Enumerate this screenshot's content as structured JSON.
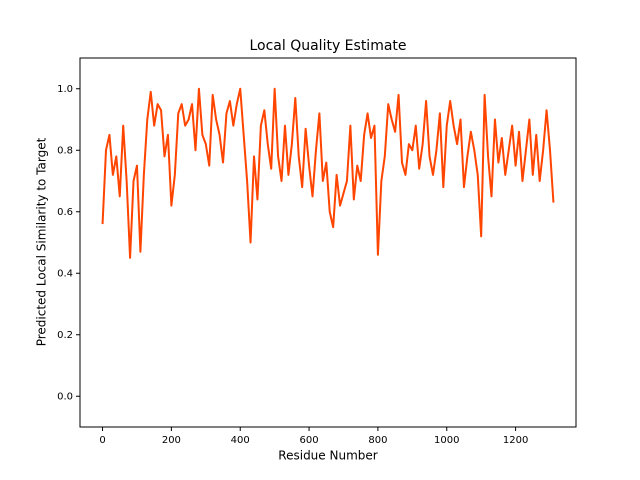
{
  "chart_data": {
    "type": "line",
    "title": "Local Quality Estimate",
    "x_label": "Residue Number",
    "y_label": "Predicted Local Similarity to Target",
    "xlim": [
      -65.5,
      1375.5
    ],
    "ylim": [
      -0.1,
      1.1
    ],
    "xticks": [
      0,
      200,
      400,
      600,
      800,
      1000,
      1200
    ],
    "yticks": [
      {
        "value": 0,
        "label": "0.0"
      },
      0.2,
      0.4,
      0.6,
      0.8,
      {
        "value": 1,
        "label": "1.0"
      }
    ],
    "grid": false,
    "series": [
      {
        "color": "#ff4500",
        "x": [
          0,
          10,
          20,
          30,
          40,
          50,
          60,
          70,
          80,
          90,
          100,
          110,
          120,
          130,
          140,
          150,
          160,
          170,
          180,
          190,
          200,
          210,
          220,
          230,
          240,
          250,
          260,
          270,
          280,
          290,
          300,
          310,
          320,
          330,
          340,
          350,
          360,
          370,
          380,
          390,
          400,
          410,
          420,
          430,
          440,
          450,
          460,
          470,
          480,
          490,
          500,
          510,
          520,
          530,
          540,
          550,
          560,
          570,
          580,
          590,
          600,
          610,
          620,
          630,
          640,
          650,
          660,
          670,
          680,
          690,
          700,
          710,
          720,
          730,
          740,
          750,
          760,
          770,
          780,
          790,
          800,
          810,
          820,
          830,
          840,
          850,
          860,
          870,
          880,
          890,
          900,
          910,
          920,
          930,
          940,
          950,
          960,
          970,
          980,
          990,
          1000,
          1010,
          1020,
          1030,
          1040,
          1050,
          1060,
          1070,
          1080,
          1090,
          1100,
          1110,
          1120,
          1130,
          1140,
          1150,
          1160,
          1170,
          1180,
          1190,
          1200,
          1210,
          1220,
          1230,
          1240,
          1250,
          1260,
          1270,
          1280,
          1290,
          1300,
          1310
        ],
        "values": [
          0.56,
          0.8,
          0.85,
          0.72,
          0.78,
          0.65,
          0.88,
          0.7,
          0.45,
          0.7,
          0.75,
          0.47,
          0.72,
          0.9,
          0.99,
          0.88,
          0.95,
          0.93,
          0.78,
          0.85,
          0.62,
          0.72,
          0.92,
          0.95,
          0.88,
          0.9,
          0.95,
          0.8,
          1.0,
          0.85,
          0.82,
          0.75,
          0.98,
          0.9,
          0.85,
          0.76,
          0.92,
          0.96,
          0.88,
          0.95,
          1.0,
          0.85,
          0.7,
          0.5,
          0.78,
          0.64,
          0.88,
          0.93,
          0.82,
          0.74,
          1.0,
          0.78,
          0.7,
          0.88,
          0.72,
          0.82,
          0.97,
          0.78,
          0.68,
          0.87,
          0.75,
          0.65,
          0.8,
          0.92,
          0.7,
          0.76,
          0.6,
          0.55,
          0.72,
          0.62,
          0.66,
          0.7,
          0.88,
          0.64,
          0.75,
          0.7,
          0.85,
          0.92,
          0.84,
          0.88,
          0.46,
          0.7,
          0.78,
          0.95,
          0.9,
          0.86,
          0.98,
          0.76,
          0.72,
          0.82,
          0.8,
          0.88,
          0.74,
          0.82,
          0.96,
          0.78,
          0.72,
          0.8,
          0.92,
          0.68,
          0.88,
          0.96,
          0.88,
          0.82,
          0.9,
          0.68,
          0.78,
          0.86,
          0.8,
          0.72,
          0.52,
          0.98,
          0.78,
          0.65,
          0.9,
          0.76,
          0.84,
          0.72,
          0.8,
          0.88,
          0.75,
          0.86,
          0.7,
          0.8,
          0.9,
          0.72,
          0.85,
          0.7,
          0.8,
          0.93,
          0.8,
          0.63
        ]
      }
    ]
  }
}
